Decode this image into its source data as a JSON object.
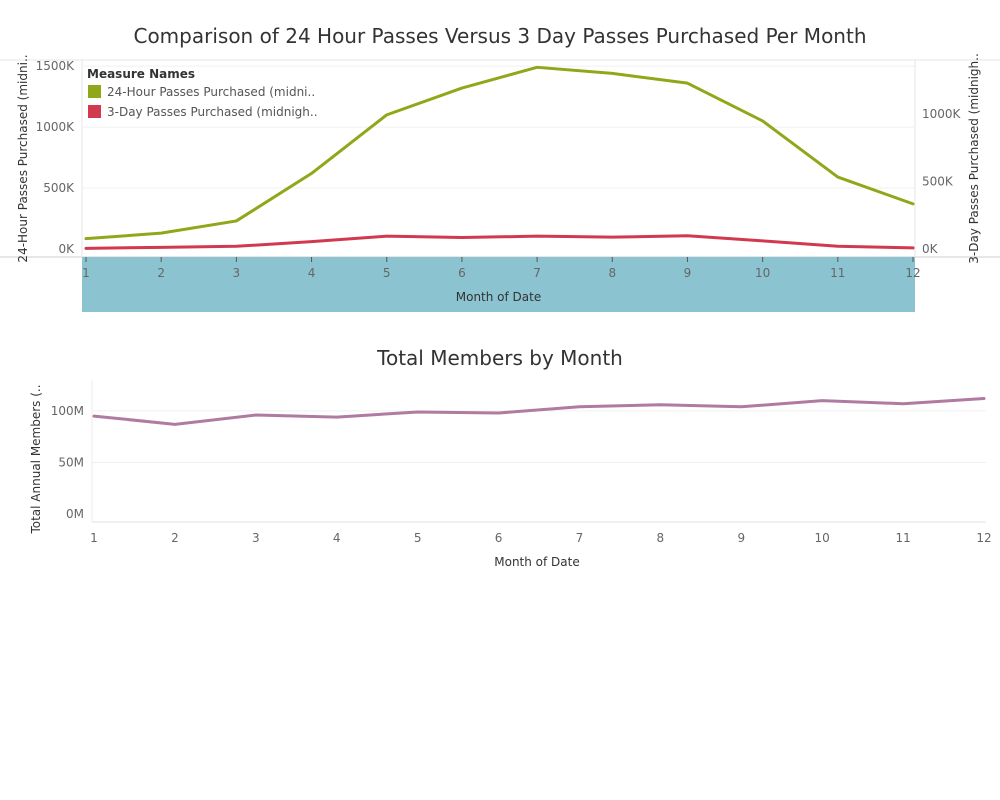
{
  "chart_data": [
    {
      "type": "line",
      "title": "Comparison of 24 Hour Passes Versus 3 Day Passes Purchased Per Month",
      "xlabel": "Month of Date",
      "ylabel_left": "24-Hour Passes Purchased (midni..",
      "ylabel_right": "3-Day Passes Purchased (midnigh..",
      "categories": [
        "1",
        "2",
        "3",
        "4",
        "5",
        "6",
        "7",
        "8",
        "9",
        "10",
        "11",
        "12"
      ],
      "left_ticks": [
        "0K",
        "500K",
        "1000K",
        "1500K"
      ],
      "right_ticks": [
        "0K",
        "500K",
        "1000K"
      ],
      "ylim_left": [
        0,
        1550000
      ],
      "ylim_right": [
        0,
        1400000
      ],
      "legend": {
        "title": "Measure Names",
        "placement": "top-left"
      },
      "series": [
        {
          "name": "24-Hour Passes Purchased (midni..",
          "axis": "left",
          "color": "#8fa81a",
          "values": [
            85000,
            130000,
            230000,
            620000,
            1100000,
            1320000,
            1490000,
            1440000,
            1360000,
            1050000,
            590000,
            370000
          ]
        },
        {
          "name": "3-Day Passes Purchased (midnigh..",
          "axis": "right",
          "color": "#d1394f",
          "values": [
            5000,
            12000,
            20000,
            55000,
            95000,
            85000,
            95000,
            88000,
            98000,
            60000,
            20000,
            8000
          ]
        }
      ],
      "highlight_band_color": "#8bc3d0"
    },
    {
      "type": "line",
      "title": "Total Members by Month",
      "xlabel": "Month of Date",
      "ylabel": "Total Annual Members (..",
      "categories": [
        "1",
        "2",
        "3",
        "4",
        "5",
        "6",
        "7",
        "8",
        "9",
        "10",
        "11",
        "12"
      ],
      "y_ticks": [
        "0M",
        "50M",
        "100M"
      ],
      "ylim": [
        0,
        130000000
      ],
      "series": [
        {
          "color": "#b07aa1",
          "values": [
            95000000,
            87000000,
            96000000,
            94000000,
            99000000,
            98000000,
            104000000,
            106000000,
            104000000,
            110000000,
            107000000,
            112000000
          ]
        }
      ]
    }
  ]
}
